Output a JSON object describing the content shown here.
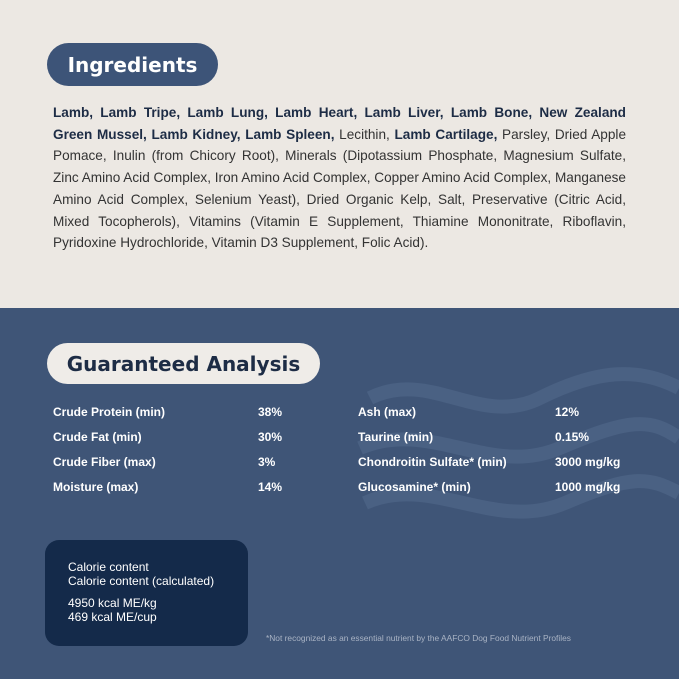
{
  "ingredients": {
    "title": "Ingredients",
    "segments": [
      {
        "text": "Lamb, Lamb Tripe, Lamb Lung, Lamb Heart, Lamb Liver, Lamb Bone, New Zealand Green Mussel, Lamb Kidney, Lamb Spleen,",
        "bold": true
      },
      {
        "text": " Lecithin, ",
        "bold": false
      },
      {
        "text": "Lamb Cartilage,",
        "bold": true
      },
      {
        "text": " Parsley, Dried Apple Pomace, Inulin (from Chicory Root), Minerals (Dipotassium Phosphate, Magnesium Sulfate, Zinc Amino Acid Complex, Iron Amino Acid Complex, Copper Amino Acid Complex, Manganese Amino Acid Complex, Selenium Yeast), Dried Organic Kelp, Salt, Preservative (Citric Acid, Mixed Tocopherols), Vitamins (Vitamin E Supplement, Thiamine Mononitrate, Riboflavin, Pyridoxine Hydrochloride, Vitamin D3 Supplement, Folic Acid).",
        "bold": false
      }
    ]
  },
  "analysis": {
    "title": "Guaranteed Analysis",
    "rows": [
      [
        "Crude Protein (min)",
        "38%",
        "Ash (max)",
        "12%"
      ],
      [
        "Crude Fat (min)",
        "30%",
        "Taurine (min)",
        "0.15%"
      ],
      [
        "Crude Fiber (max)",
        "3%",
        "Chondroitin Sulfate* (min)",
        "3000 mg/kg"
      ],
      [
        "Moisture (max)",
        "14%",
        "Glucosamine* (min)",
        "1000 mg/kg"
      ]
    ]
  },
  "calorie": {
    "lines": [
      "Calorie content",
      "Calorie content (calculated)"
    ],
    "values": [
      "4950 kcal ME/kg",
      "469 kcal ME/cup"
    ]
  },
  "footnote": "*Not recognized as an essential nutrient by the AAFCO Dog Food Nutrient Profiles"
}
